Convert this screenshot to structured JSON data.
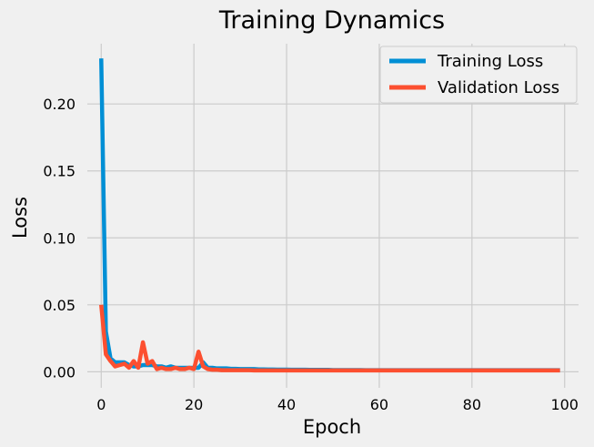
{
  "chart_data": {
    "type": "line",
    "title": "Training Dynamics",
    "xlabel": "Epoch",
    "ylabel": "Loss",
    "xlim": [
      -3,
      103
    ],
    "ylim": [
      -0.012,
      0.245
    ],
    "xticks": [
      0,
      20,
      40,
      60,
      80,
      100
    ],
    "yticks": [
      0.0,
      0.05,
      0.1,
      0.15,
      0.2
    ],
    "xtick_labels": [
      "0",
      "20",
      "40",
      "60",
      "80",
      "100"
    ],
    "ytick_labels": [
      "0.00",
      "0.05",
      "0.10",
      "0.15",
      "0.20"
    ],
    "grid": true,
    "legend_position": "top-right",
    "series": [
      {
        "name": "Training Loss",
        "color": "#008fd5",
        "x": [
          0,
          1,
          2,
          3,
          4,
          5,
          6,
          7,
          8,
          9,
          10,
          11,
          12,
          13,
          14,
          15,
          16,
          17,
          18,
          19,
          20,
          21,
          22,
          23,
          24,
          25,
          26,
          27,
          28,
          29,
          30,
          31,
          32,
          33,
          34,
          35,
          36,
          37,
          38,
          39,
          40,
          41,
          42,
          43,
          44,
          45,
          46,
          47,
          48,
          49,
          50,
          51,
          52,
          53,
          54,
          55,
          56,
          57,
          58,
          59,
          60,
          61,
          62,
          63,
          64,
          65,
          66,
          67,
          68,
          69,
          70,
          71,
          72,
          73,
          74,
          75,
          76,
          77,
          78,
          79,
          80,
          81,
          82,
          83,
          84,
          85,
          86,
          87,
          88,
          89,
          90,
          91,
          92,
          93,
          94,
          95,
          96,
          97,
          98,
          99
        ],
        "y": [
          0.234,
          0.03,
          0.01,
          0.007,
          0.007,
          0.007,
          0.005,
          0.004,
          0.004,
          0.005,
          0.005,
          0.005,
          0.004,
          0.004,
          0.003,
          0.004,
          0.003,
          0.003,
          0.003,
          0.003,
          0.003,
          0.003,
          0.007,
          0.003,
          0.003,
          0.0025,
          0.0025,
          0.0025,
          0.0022,
          0.0022,
          0.002,
          0.002,
          0.002,
          0.002,
          0.0018,
          0.0018,
          0.0017,
          0.0017,
          0.0016,
          0.0016,
          0.0016,
          0.0015,
          0.0015,
          0.0015,
          0.0015,
          0.0014,
          0.0014,
          0.0014,
          0.0014,
          0.0014,
          0.0013,
          0.0013,
          0.0013,
          0.0013,
          0.0013,
          0.0013,
          0.0013,
          0.0012,
          0.0012,
          0.0012,
          0.0012,
          0.0012,
          0.0012,
          0.0012,
          0.0012,
          0.0012,
          0.0012,
          0.0012,
          0.0012,
          0.0012,
          0.0012,
          0.0012,
          0.0012,
          0.0012,
          0.0012,
          0.0012,
          0.0012,
          0.0012,
          0.0012,
          0.0012,
          0.0012,
          0.0012,
          0.0012,
          0.0012,
          0.0012,
          0.0012,
          0.0012,
          0.0012,
          0.0012,
          0.0012,
          0.0012,
          0.0012,
          0.0012,
          0.0012,
          0.0012,
          0.0012,
          0.0012,
          0.0012,
          0.0012,
          0.0012
        ]
      },
      {
        "name": "Validation Loss",
        "color": "#fc4f30",
        "x": [
          0,
          1,
          2,
          3,
          4,
          5,
          6,
          7,
          8,
          9,
          10,
          11,
          12,
          13,
          14,
          15,
          16,
          17,
          18,
          19,
          20,
          21,
          22,
          23,
          24,
          25,
          26,
          27,
          28,
          29,
          30,
          31,
          32,
          33,
          34,
          35,
          36,
          37,
          38,
          39,
          40,
          41,
          42,
          43,
          44,
          45,
          46,
          47,
          48,
          49,
          50,
          51,
          52,
          53,
          54,
          55,
          56,
          57,
          58,
          59,
          60,
          61,
          62,
          63,
          64,
          65,
          66,
          67,
          68,
          69,
          70,
          71,
          72,
          73,
          74,
          75,
          76,
          77,
          78,
          79,
          80,
          81,
          82,
          83,
          84,
          85,
          86,
          87,
          88,
          89,
          90,
          91,
          92,
          93,
          94,
          95,
          96,
          97,
          98,
          99
        ],
        "y": [
          0.05,
          0.013,
          0.008,
          0.004,
          0.005,
          0.006,
          0.003,
          0.008,
          0.003,
          0.022,
          0.006,
          0.008,
          0.002,
          0.003,
          0.002,
          0.002,
          0.003,
          0.002,
          0.002,
          0.003,
          0.002,
          0.015,
          0.004,
          0.002,
          0.0015,
          0.0015,
          0.0012,
          0.0012,
          0.0012,
          0.0012,
          0.0012,
          0.0012,
          0.0012,
          0.001,
          0.001,
          0.001,
          0.001,
          0.001,
          0.001,
          0.001,
          0.001,
          0.001,
          0.001,
          0.001,
          0.001,
          0.001,
          0.001,
          0.001,
          0.001,
          0.001,
          0.001,
          0.001,
          0.001,
          0.001,
          0.001,
          0.001,
          0.001,
          0.001,
          0.001,
          0.001,
          0.001,
          0.001,
          0.001,
          0.001,
          0.001,
          0.001,
          0.001,
          0.001,
          0.001,
          0.001,
          0.001,
          0.001,
          0.001,
          0.001,
          0.001,
          0.001,
          0.001,
          0.001,
          0.001,
          0.001,
          0.001,
          0.001,
          0.001,
          0.001,
          0.001,
          0.001,
          0.001,
          0.001,
          0.001,
          0.001,
          0.001,
          0.001,
          0.001,
          0.001,
          0.001,
          0.001,
          0.001,
          0.001,
          0.001,
          0.001
        ]
      }
    ]
  }
}
